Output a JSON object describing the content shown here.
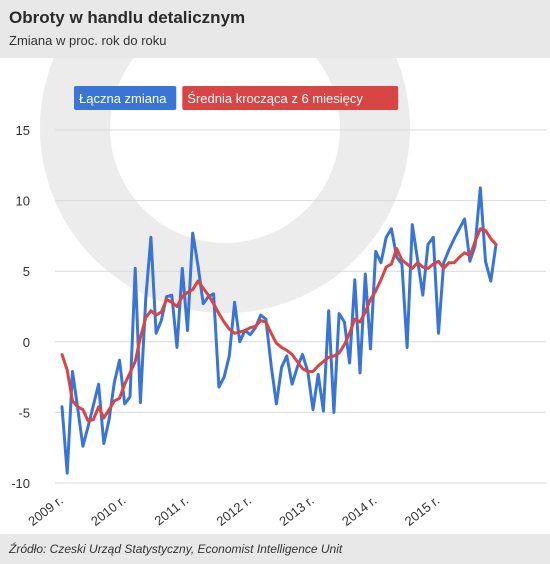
{
  "header": {
    "title": "Obroty w handlu detalicznym",
    "subtitle": "Zmiana w proc. rok do roku"
  },
  "footer": {
    "source": "Źródło: Czeski Urząd Statystyczny, Economist Intelligence Unit"
  },
  "chart_data": {
    "type": "line",
    "title": "Obroty w handlu detalicznym",
    "subtitle": "Zmiana w proc. rok do roku",
    "xlabel": "",
    "ylabel": "",
    "ylim": [
      -10,
      15
    ],
    "yticks": [
      -10,
      -5,
      0,
      5,
      10,
      15
    ],
    "xticks": [
      "2009 r.",
      "2010 r.",
      "2011 r.",
      "2012 r.",
      "2013 r.",
      "2014 r.",
      "2015 r."
    ],
    "grid": true,
    "legend_position": "top-left",
    "colors": {
      "series_0": "#3a75d6",
      "series_1": "#d84545"
    },
    "series": [
      {
        "name": "Łączna zmiana",
        "values": [
          -4.6,
          -9.3,
          -2.1,
          -4.7,
          -7.4,
          -6.0,
          -4.5,
          -3.0,
          -7.2,
          -5.5,
          -2.9,
          -1.3,
          -4.4,
          -3.9,
          5.2,
          -4.3,
          3.0,
          7.4,
          0.6,
          1.5,
          3.2,
          3.3,
          -0.4,
          5.2,
          0.8,
          7.7,
          5.4,
          2.7,
          3.2,
          3.4,
          -3.2,
          -2.5,
          -1.0,
          2.8,
          0.0,
          0.8,
          0.5,
          1.0,
          1.9,
          1.6,
          -1.7,
          -4.4,
          -1.8,
          -1.0,
          -3.0,
          -1.8,
          -0.9,
          -2.1,
          -4.8,
          -2.3,
          -4.9,
          2.2,
          -5.0,
          2.0,
          1.4,
          -1.5,
          4.4,
          -2.2,
          4.8,
          -0.5,
          6.4,
          5.6,
          7.4,
          8.0,
          6.0,
          5.5,
          -0.4,
          8.3,
          5.8,
          3.3,
          6.9,
          7.4,
          0.6,
          5.6,
          6.5,
          7.3,
          8.0,
          8.7,
          5.7,
          6.8,
          10.9,
          5.7,
          4.3,
          6.9
        ]
      },
      {
        "name": "Średnia krocząca z 6 miesięcy",
        "values": [
          -0.9,
          -2.0,
          -4.2,
          -4.6,
          -4.8,
          -5.6,
          -5.5,
          -4.6,
          -5.4,
          -4.8,
          -4.2,
          -4.0,
          -3.0,
          -2.2,
          -1.4,
          0.3,
          1.7,
          2.2,
          1.9,
          2.1,
          3.0,
          2.8,
          2.5,
          3.2,
          3.5,
          3.7,
          4.3,
          3.8,
          3.3,
          2.7,
          2.0,
          1.4,
          0.9,
          0.6,
          0.7,
          0.8,
          1.0,
          1.1,
          1.5,
          1.4,
          0.6,
          -0.1,
          -0.4,
          -0.6,
          -0.9,
          -1.4,
          -1.9,
          -2.1,
          -2.1,
          -1.7,
          -1.4,
          -1.1,
          -1.0,
          -0.8,
          -0.2,
          0.6,
          1.6,
          1.4,
          2.1,
          3.0,
          3.6,
          4.4,
          5.3,
          5.5,
          6.6,
          5.8,
          5.5,
          5.2,
          5.6,
          5.3,
          5.2,
          5.5,
          5.7,
          5.2,
          5.6,
          5.6,
          6.0,
          6.3,
          6.1,
          7.1,
          8.0,
          7.9,
          7.3,
          6.9
        ]
      }
    ]
  }
}
